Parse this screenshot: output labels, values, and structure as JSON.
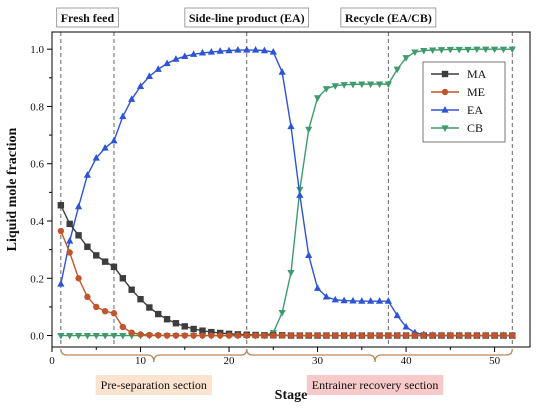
{
  "chart_data": {
    "type": "line",
    "xlabel": "Stage",
    "ylabel": "Liquid mole fraction",
    "xlim": [
      0,
      54
    ],
    "ylim": [
      -0.04,
      1.06
    ],
    "x_ticks": [
      0,
      10,
      20,
      30,
      40,
      50
    ],
    "y_ticks": [
      0.0,
      0.2,
      0.4,
      0.6,
      0.8,
      1.0
    ],
    "x_tick_labels": [
      "0",
      "10",
      "20",
      "30",
      "40",
      "50"
    ],
    "y_tick_labels": [
      "0.0",
      "0.2",
      "0.4",
      "0.6",
      "0.8",
      "1.0"
    ],
    "grid": false,
    "legend_position": "right",
    "reference_lines": [
      1,
      7,
      22,
      38,
      52
    ],
    "annotations": {
      "top": [
        {
          "text": "Fresh feed",
          "x": 4
        },
        {
          "text": "Side-line product (EA)",
          "x": 22
        },
        {
          "text": "Recycle (EA/CB)",
          "x": 38
        }
      ],
      "sections": [
        {
          "text": "Pre-separation section",
          "from": 1,
          "to": 22,
          "label_x": 11.5,
          "fill": "#fbe3cf"
        },
        {
          "text": "Entrainer  recovery section",
          "from": 22,
          "to": 52,
          "label_x": 36.5,
          "fill": "#f7c9c9"
        }
      ]
    },
    "x": [
      1,
      2,
      3,
      4,
      5,
      6,
      7,
      8,
      9,
      10,
      11,
      12,
      13,
      14,
      15,
      16,
      17,
      18,
      19,
      20,
      21,
      22,
      23,
      24,
      25,
      26,
      27,
      28,
      29,
      30,
      31,
      32,
      33,
      34,
      35,
      36,
      37,
      38,
      39,
      40,
      41,
      42,
      43,
      44,
      45,
      46,
      47,
      48,
      49,
      50,
      51,
      52
    ],
    "series": [
      {
        "name": "MA",
        "color": "#3d3d3d",
        "marker": "square",
        "values": [
          0.455,
          0.39,
          0.35,
          0.31,
          0.28,
          0.258,
          0.24,
          0.2,
          0.16,
          0.127,
          0.098,
          0.075,
          0.057,
          0.043,
          0.032,
          0.023,
          0.017,
          0.012,
          0.009,
          0.006,
          0.004,
          0.003,
          0.002,
          0.001,
          0.001,
          0.001,
          0.0,
          0.0,
          0.0,
          0.0,
          0.0,
          0.0,
          0.0,
          0.0,
          0.0,
          0.0,
          0.0,
          0.0,
          0.0,
          0.0,
          0.0,
          0.0,
          0.0,
          0.0,
          0.0,
          0.0,
          0.0,
          0.0,
          0.0,
          0.0,
          0.0,
          0.0
        ]
      },
      {
        "name": "ME",
        "color": "#c0552d",
        "marker": "circle",
        "values": [
          0.365,
          0.29,
          0.2,
          0.135,
          0.1,
          0.085,
          0.078,
          0.03,
          0.01,
          0.004,
          0.002,
          0.001,
          0.0,
          0.0,
          0.0,
          0.0,
          0.0,
          0.0,
          0.0,
          0.0,
          0.0,
          0.0,
          0.0,
          0.0,
          0.0,
          0.0,
          0.0,
          0.0,
          0.0,
          0.0,
          0.0,
          0.0,
          0.0,
          0.0,
          0.0,
          0.0,
          0.0,
          0.0,
          0.0,
          0.0,
          0.0,
          0.0,
          0.0,
          0.0,
          0.0,
          0.0,
          0.0,
          0.0,
          0.0,
          0.0,
          0.0,
          0.0
        ]
      },
      {
        "name": "EA",
        "color": "#2d54d6",
        "marker": "triangle-up",
        "values": [
          0.18,
          0.33,
          0.45,
          0.56,
          0.62,
          0.655,
          0.68,
          0.765,
          0.825,
          0.87,
          0.905,
          0.93,
          0.95,
          0.965,
          0.975,
          0.982,
          0.987,
          0.99,
          0.993,
          0.995,
          0.997,
          0.997,
          0.997,
          0.995,
          0.99,
          0.92,
          0.73,
          0.49,
          0.28,
          0.165,
          0.135,
          0.125,
          0.122,
          0.121,
          0.12,
          0.12,
          0.12,
          0.12,
          0.07,
          0.03,
          0.01,
          0.003,
          0.001,
          0.0,
          0.0,
          0.0,
          0.0,
          0.0,
          0.0,
          0.0,
          0.0,
          0.0
        ]
      },
      {
        "name": "CB",
        "color": "#3f9a6c",
        "marker": "triangle-down",
        "values": [
          0.0,
          0.0,
          0.0,
          0.0,
          0.0,
          0.0,
          0.0,
          0.0,
          0.0,
          0.0,
          0.0,
          0.0,
          0.0,
          0.0,
          0.0,
          0.0,
          0.0,
          0.0,
          0.0,
          0.0,
          0.0,
          0.0,
          0.0,
          0.0,
          0.01,
          0.08,
          0.22,
          0.51,
          0.72,
          0.83,
          0.862,
          0.872,
          0.876,
          0.877,
          0.878,
          0.878,
          0.878,
          0.878,
          0.93,
          0.97,
          0.99,
          0.995,
          0.997,
          0.998,
          0.999,
          0.999,
          0.999,
          1.0,
          1.0,
          1.0,
          1.0,
          1.0
        ]
      }
    ]
  }
}
